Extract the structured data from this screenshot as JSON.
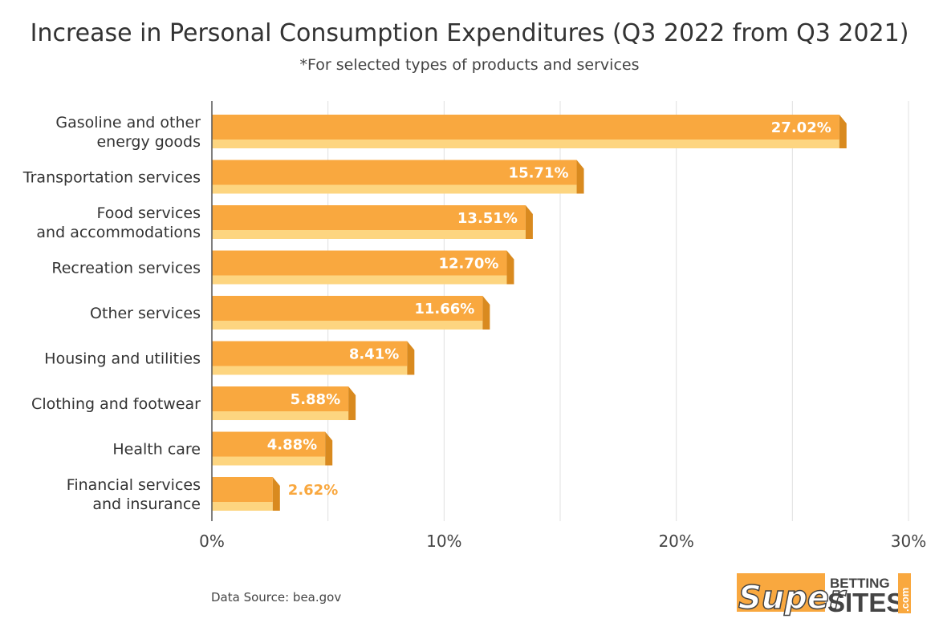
{
  "title": "Increase in Personal Consumption Expenditures (Q3 2022 from Q3 2021)",
  "subtitle": "*For selected types of products and services",
  "source": "Data Source: bea.gov",
  "logo": {
    "super": "Super",
    "betting": "BETTING",
    "sites": "SITES",
    "com": ".com"
  },
  "colors": {
    "bar_face": "#f9a83f",
    "bar_bottom": "#fdd580",
    "bar_side": "#d98a1f",
    "label_inside": "#ffffff",
    "label_outside": "#f9a83f",
    "grid": "#e0e0e0",
    "axis": "#555555",
    "logo_orange": "#f9a83f",
    "logo_dark": "#444444"
  },
  "chart_data": {
    "type": "bar",
    "orientation": "horizontal",
    "categories": [
      [
        "Gasoline and other",
        "energy goods"
      ],
      [
        "Transportation services"
      ],
      [
        "Food services",
        "and accommodations"
      ],
      [
        "Recreation services"
      ],
      [
        "Other services"
      ],
      [
        "Housing and utilities"
      ],
      [
        "Clothing and footwear"
      ],
      [
        "Health care"
      ],
      [
        "Financial services",
        "and insurance"
      ]
    ],
    "values": [
      27.02,
      15.71,
      13.51,
      12.7,
      11.66,
      8.41,
      5.88,
      4.88,
      2.62
    ],
    "value_labels": [
      "27.02%",
      "15.71%",
      "13.51%",
      "12.70%",
      "11.66%",
      "8.41%",
      "5.88%",
      "4.88%",
      "2.62%"
    ],
    "xlim": [
      0,
      30
    ],
    "xticks": [
      0,
      10,
      20,
      30
    ],
    "xtick_labels": [
      "0%",
      "10%",
      "20%",
      "30%"
    ],
    "minor_gridlines": [
      5,
      15,
      25
    ],
    "grid": true,
    "legend": "none"
  }
}
